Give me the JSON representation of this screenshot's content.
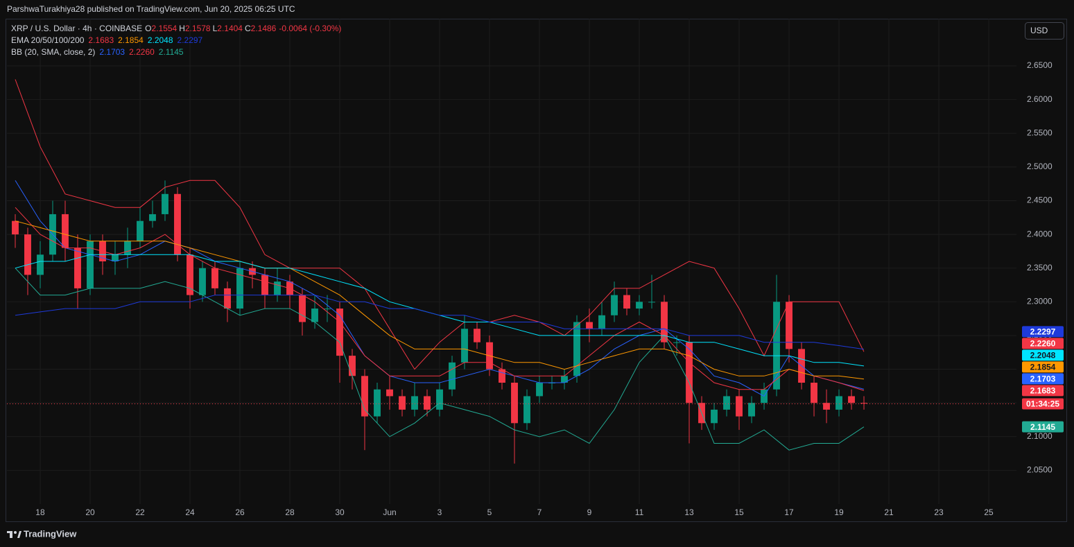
{
  "chart_data": {
    "type": "candlestick",
    "attribution": "ParshwaTurakhiya28 published on TradingView.com, Jun 20, 2025 06:25 UTC",
    "symbol": "XRP / U.S. Dollar · 4h · COINBASE",
    "ohlc_labels": [
      "O",
      "H",
      "L",
      "C"
    ],
    "ohlc": [
      2.1554,
      2.1578,
      2.1404,
      2.1486
    ],
    "change": "-0.0064 (-0.30%)",
    "countdown": "01:34:25",
    "currency": "USD",
    "brand": "TradingView",
    "up_color": "#089981",
    "down_color": "#f23645",
    "grid": true,
    "xlim": [
      -1.333,
      39.11
    ],
    "ylim": [
      2.0,
      2.72
    ],
    "xticks": [
      {
        "value": 0,
        "label": "18"
      },
      {
        "value": 2,
        "label": "20"
      },
      {
        "value": 4,
        "label": "22"
      },
      {
        "value": 6,
        "label": "24"
      },
      {
        "value": 8,
        "label": "26"
      },
      {
        "value": 10,
        "label": "28"
      },
      {
        "value": 12,
        "label": "30"
      },
      {
        "value": 14,
        "label": "Jun"
      },
      {
        "value": 16,
        "label": "3"
      },
      {
        "value": 18,
        "label": "5"
      },
      {
        "value": 20,
        "label": "7"
      },
      {
        "value": 22,
        "label": "9"
      },
      {
        "value": 24,
        "label": "11"
      },
      {
        "value": 26,
        "label": "13"
      },
      {
        "value": 28,
        "label": "15"
      },
      {
        "value": 30,
        "label": "17"
      },
      {
        "value": 32,
        "label": "19"
      },
      {
        "value": 34,
        "label": "21"
      },
      {
        "value": 36,
        "label": "23"
      },
      {
        "value": 38,
        "label": "25"
      }
    ],
    "yticks": [
      {
        "value": 2.05,
        "label": "2.0500"
      },
      {
        "value": 2.1,
        "label": "2.1000"
      },
      {
        "value": 2.15,
        "label": "2.1500"
      },
      {
        "value": 2.2,
        "label": "2.2000"
      },
      {
        "value": 2.25,
        "label": "2.2500"
      },
      {
        "value": 2.3,
        "label": "2.3000"
      },
      {
        "value": 2.35,
        "label": "2.3500"
      },
      {
        "value": 2.4,
        "label": "2.4000"
      },
      {
        "value": 2.45,
        "label": "2.4500"
      },
      {
        "value": 2.5,
        "label": "2.5000"
      },
      {
        "value": 2.55,
        "label": "2.5500"
      },
      {
        "value": 2.6,
        "label": "2.6000"
      },
      {
        "value": 2.65,
        "label": "2.6500"
      }
    ],
    "x": [
      -1,
      -0.5,
      0,
      0.5,
      1,
      1.5,
      2,
      2.5,
      3,
      3.5,
      4,
      4.5,
      5,
      5.5,
      6,
      6.5,
      7,
      7.5,
      8,
      8.5,
      9,
      9.5,
      10,
      10.5,
      11,
      11.5,
      12,
      12.5,
      13,
      13.5,
      14,
      14.5,
      15,
      15.5,
      16,
      16.5,
      17,
      17.5,
      18,
      18.5,
      19,
      19.5,
      20,
      20.5,
      21,
      21.5,
      22,
      22.5,
      23,
      23.5,
      24,
      24.5,
      25,
      25.5,
      26,
      26.5,
      27,
      27.5,
      28,
      28.5,
      29,
      29.5,
      30,
      30.5,
      31,
      31.5,
      32,
      32.5,
      33
    ],
    "open": [
      2.42,
      2.4,
      2.34,
      2.37,
      2.43,
      2.38,
      2.32,
      2.39,
      2.36,
      2.37,
      2.39,
      2.42,
      2.43,
      2.46,
      2.37,
      2.31,
      2.35,
      2.32,
      2.29,
      2.35,
      2.34,
      2.31,
      2.33,
      2.31,
      2.27,
      2.29,
      2.29,
      2.22,
      2.19,
      2.13,
      2.17,
      2.16,
      2.14,
      2.16,
      2.14,
      2.17,
      2.21,
      2.26,
      2.24,
      2.2,
      2.18,
      2.12,
      2.16,
      2.18,
      2.18,
      2.19,
      2.27,
      2.26,
      2.28,
      2.31,
      2.29,
      2.3,
      2.3,
      2.24,
      2.24,
      2.15,
      2.12,
      2.14,
      2.16,
      2.13,
      2.15,
      2.17,
      2.3,
      2.23,
      2.18,
      2.15,
      2.14,
      2.16,
      2.15
    ],
    "high": [
      2.43,
      2.41,
      2.39,
      2.45,
      2.45,
      2.4,
      2.4,
      2.4,
      2.39,
      2.41,
      2.44,
      2.45,
      2.48,
      2.47,
      2.38,
      2.36,
      2.36,
      2.33,
      2.36,
      2.36,
      2.35,
      2.35,
      2.34,
      2.32,
      2.31,
      2.31,
      2.3,
      2.23,
      2.2,
      2.18,
      2.19,
      2.17,
      2.18,
      2.17,
      2.18,
      2.22,
      2.28,
      2.27,
      2.25,
      2.21,
      2.19,
      2.17,
      2.19,
      2.19,
      2.2,
      2.28,
      2.29,
      2.3,
      2.33,
      2.32,
      2.31,
      2.34,
      2.31,
      2.25,
      2.25,
      2.16,
      2.15,
      2.17,
      2.17,
      2.16,
      2.18,
      2.34,
      2.31,
      2.24,
      2.19,
      2.17,
      2.17,
      2.17,
      2.16
    ],
    "low": [
      2.38,
      2.31,
      2.32,
      2.36,
      2.36,
      2.29,
      2.31,
      2.34,
      2.34,
      2.35,
      2.38,
      2.41,
      2.42,
      2.36,
      2.29,
      2.3,
      2.31,
      2.27,
      2.28,
      2.32,
      2.29,
      2.3,
      2.29,
      2.25,
      2.26,
      2.27,
      2.18,
      2.17,
      2.08,
      2.12,
      2.14,
      2.13,
      2.13,
      2.13,
      2.13,
      2.16,
      2.2,
      2.23,
      2.19,
      2.17,
      2.06,
      2.11,
      2.15,
      2.17,
      2.17,
      2.18,
      2.24,
      2.25,
      2.27,
      2.28,
      2.28,
      2.29,
      2.23,
      2.22,
      2.09,
      2.11,
      2.11,
      2.13,
      2.11,
      2.12,
      2.14,
      2.16,
      2.21,
      2.17,
      2.13,
      2.12,
      2.13,
      2.14,
      2.14
    ],
    "close": [
      2.4,
      2.34,
      2.37,
      2.43,
      2.38,
      2.32,
      2.39,
      2.36,
      2.37,
      2.39,
      2.42,
      2.43,
      2.46,
      2.37,
      2.31,
      2.35,
      2.32,
      2.29,
      2.35,
      2.34,
      2.31,
      2.33,
      2.31,
      2.27,
      2.29,
      2.29,
      2.22,
      2.19,
      2.13,
      2.17,
      2.16,
      2.14,
      2.16,
      2.14,
      2.17,
      2.21,
      2.26,
      2.24,
      2.2,
      2.18,
      2.12,
      2.16,
      2.18,
      2.18,
      2.19,
      2.27,
      2.26,
      2.28,
      2.31,
      2.29,
      2.3,
      2.3,
      2.24,
      2.24,
      2.15,
      2.12,
      2.14,
      2.16,
      2.13,
      2.15,
      2.17,
      2.3,
      2.23,
      2.18,
      2.15,
      2.14,
      2.16,
      2.15,
      2.149
    ],
    "line_x": [
      -1,
      0,
      1,
      2,
      3,
      4,
      5,
      6,
      7,
      8,
      9,
      10,
      11,
      12,
      13,
      14,
      15,
      16,
      17,
      18,
      19,
      20,
      21,
      22,
      23,
      24,
      25,
      26,
      27,
      28,
      29,
      30,
      31,
      32,
      33
    ],
    "ema": {
      "label": "EMA 20/50/100/200",
      "series": [
        {
          "color": "#f23645",
          "last": 2.1683,
          "values": [
            2.44,
            2.4,
            2.38,
            2.38,
            2.37,
            2.38,
            2.4,
            2.37,
            2.35,
            2.34,
            2.33,
            2.32,
            2.3,
            2.27,
            2.22,
            2.19,
            2.19,
            2.19,
            2.21,
            2.21,
            2.19,
            2.19,
            2.19,
            2.22,
            2.25,
            2.27,
            2.25,
            2.21,
            2.18,
            2.17,
            2.17,
            2.2,
            2.19,
            2.18,
            2.1683
          ]
        },
        {
          "color": "#ff9800",
          "last": 2.1854,
          "values": [
            2.42,
            2.41,
            2.4,
            2.39,
            2.39,
            2.39,
            2.39,
            2.38,
            2.37,
            2.36,
            2.35,
            2.35,
            2.33,
            2.31,
            2.28,
            2.25,
            2.23,
            2.23,
            2.23,
            2.22,
            2.21,
            2.21,
            2.2,
            2.21,
            2.22,
            2.23,
            2.23,
            2.22,
            2.2,
            2.19,
            2.19,
            2.2,
            2.19,
            2.19,
            2.1854
          ]
        },
        {
          "color": "#00e5ff",
          "last": 2.2048,
          "values": [
            2.35,
            2.36,
            2.36,
            2.37,
            2.37,
            2.37,
            2.37,
            2.37,
            2.36,
            2.36,
            2.35,
            2.35,
            2.34,
            2.33,
            2.32,
            2.3,
            2.29,
            2.28,
            2.27,
            2.27,
            2.26,
            2.25,
            2.25,
            2.25,
            2.25,
            2.25,
            2.25,
            2.24,
            2.24,
            2.23,
            2.22,
            2.22,
            2.21,
            2.21,
            2.2048
          ]
        },
        {
          "color": "#1e3adb",
          "last": 2.2297,
          "values": [
            2.28,
            2.285,
            2.29,
            2.29,
            2.29,
            2.3,
            2.3,
            2.3,
            2.31,
            2.31,
            2.31,
            2.31,
            2.31,
            2.3,
            2.3,
            2.29,
            2.29,
            2.28,
            2.28,
            2.27,
            2.27,
            2.27,
            2.26,
            2.26,
            2.26,
            2.26,
            2.26,
            2.25,
            2.25,
            2.25,
            2.24,
            2.24,
            2.24,
            2.235,
            2.2297
          ]
        }
      ]
    },
    "bb": {
      "label": "BB (20, SMA, close, 2)",
      "series": [
        {
          "color": "#2962ff",
          "last": 2.1703,
          "values": [
            2.48,
            2.42,
            2.38,
            2.37,
            2.36,
            2.37,
            2.39,
            2.38,
            2.36,
            2.35,
            2.34,
            2.33,
            2.31,
            2.28,
            2.22,
            2.19,
            2.18,
            2.18,
            2.19,
            2.2,
            2.19,
            2.18,
            2.18,
            2.2,
            2.23,
            2.25,
            2.26,
            2.23,
            2.19,
            2.18,
            2.16,
            2.22,
            2.19,
            2.18,
            2.1703
          ]
        },
        {
          "color": "#f23645",
          "last": {
            "value": 2.226,
            "label": "2.2260"
          },
          "values": [
            2.63,
            2.53,
            2.46,
            2.45,
            2.44,
            2.44,
            2.47,
            2.48,
            2.48,
            2.44,
            2.37,
            2.35,
            2.35,
            2.35,
            2.32,
            2.26,
            2.2,
            2.24,
            2.27,
            2.27,
            2.28,
            2.27,
            2.25,
            2.28,
            2.32,
            2.32,
            2.34,
            2.36,
            2.35,
            2.29,
            2.22,
            2.3,
            2.3,
            2.3,
            2.226
          ]
        },
        {
          "color": "#22ab94",
          "last": 2.1145,
          "values": [
            2.35,
            2.31,
            2.31,
            2.32,
            2.32,
            2.32,
            2.33,
            2.32,
            2.3,
            2.28,
            2.29,
            2.29,
            2.27,
            2.24,
            2.14,
            2.1,
            2.12,
            2.15,
            2.14,
            2.13,
            2.11,
            2.1,
            2.11,
            2.09,
            2.14,
            2.21,
            2.25,
            2.18,
            2.09,
            2.09,
            2.11,
            2.08,
            2.09,
            2.09,
            2.1145
          ]
        }
      ]
    }
  }
}
